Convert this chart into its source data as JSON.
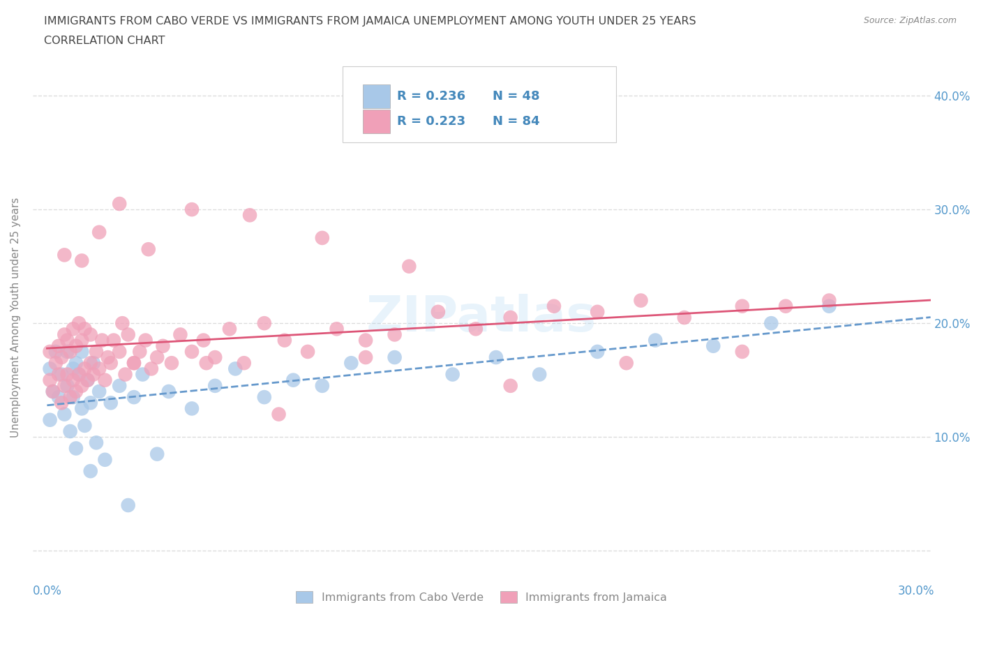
{
  "title_line1": "IMMIGRANTS FROM CABO VERDE VS IMMIGRANTS FROM JAMAICA UNEMPLOYMENT AMONG YOUTH UNDER 25 YEARS",
  "title_line2": "CORRELATION CHART",
  "source_text": "Source: ZipAtlas.com",
  "ylabel": "Unemployment Among Youth under 25 years",
  "xlim": [
    -0.005,
    0.305
  ],
  "ylim": [
    -0.025,
    0.435
  ],
  "xticks": [
    0.0,
    0.05,
    0.1,
    0.15,
    0.2,
    0.25,
    0.3
  ],
  "xticklabels_left": "0.0%",
  "xticklabels_right": "30.0%",
  "ytick_vals": [
    0.0,
    0.1,
    0.2,
    0.3,
    0.4
  ],
  "ytick_labels": [
    "",
    "10.0%",
    "20.0%",
    "30.0%",
    "40.0%"
  ],
  "legend_label1": "Immigrants from Cabo Verde",
  "legend_label2": "Immigrants from Jamaica",
  "color_blue": "#a8c8e8",
  "color_pink": "#f0a0b8",
  "line_blue_color": "#6699cc",
  "line_pink_color": "#dd5577",
  "tick_label_color": "#5599cc",
  "title_color": "#444444",
  "axis_color": "#888888",
  "grid_color": "#dddddd",
  "watermark": "ZIPatlas",
  "cabo_verde_x": [
    0.001,
    0.001,
    0.002,
    0.003,
    0.004,
    0.005,
    0.006,
    0.007,
    0.007,
    0.008,
    0.009,
    0.009,
    0.01,
    0.01,
    0.011,
    0.012,
    0.012,
    0.013,
    0.014,
    0.015,
    0.015,
    0.016,
    0.017,
    0.018,
    0.02,
    0.022,
    0.025,
    0.028,
    0.03,
    0.033,
    0.038,
    0.042,
    0.05,
    0.058,
    0.065,
    0.075,
    0.085,
    0.095,
    0.105,
    0.12,
    0.14,
    0.155,
    0.17,
    0.19,
    0.21,
    0.23,
    0.25,
    0.27
  ],
  "cabo_verde_y": [
    0.115,
    0.16,
    0.14,
    0.175,
    0.135,
    0.155,
    0.12,
    0.145,
    0.175,
    0.105,
    0.16,
    0.135,
    0.09,
    0.165,
    0.155,
    0.125,
    0.175,
    0.11,
    0.15,
    0.07,
    0.13,
    0.165,
    0.095,
    0.14,
    0.08,
    0.13,
    0.145,
    0.04,
    0.135,
    0.155,
    0.085,
    0.14,
    0.125,
    0.145,
    0.16,
    0.135,
    0.15,
    0.145,
    0.165,
    0.17,
    0.155,
    0.17,
    0.155,
    0.175,
    0.185,
    0.18,
    0.2,
    0.215
  ],
  "jamaica_x": [
    0.001,
    0.001,
    0.002,
    0.003,
    0.004,
    0.004,
    0.005,
    0.005,
    0.006,
    0.006,
    0.007,
    0.007,
    0.008,
    0.008,
    0.009,
    0.009,
    0.01,
    0.01,
    0.011,
    0.011,
    0.012,
    0.012,
    0.013,
    0.013,
    0.014,
    0.015,
    0.015,
    0.016,
    0.017,
    0.018,
    0.019,
    0.02,
    0.021,
    0.022,
    0.023,
    0.025,
    0.026,
    0.027,
    0.028,
    0.03,
    0.032,
    0.034,
    0.036,
    0.038,
    0.04,
    0.043,
    0.046,
    0.05,
    0.054,
    0.058,
    0.063,
    0.068,
    0.075,
    0.082,
    0.09,
    0.1,
    0.11,
    0.12,
    0.135,
    0.148,
    0.16,
    0.175,
    0.19,
    0.205,
    0.22,
    0.24,
    0.255,
    0.27,
    0.006,
    0.012,
    0.018,
    0.025,
    0.035,
    0.05,
    0.07,
    0.095,
    0.125,
    0.16,
    0.2,
    0.24,
    0.03,
    0.055,
    0.08,
    0.11
  ],
  "jamaica_y": [
    0.15,
    0.175,
    0.14,
    0.165,
    0.155,
    0.18,
    0.13,
    0.17,
    0.145,
    0.19,
    0.155,
    0.185,
    0.135,
    0.175,
    0.15,
    0.195,
    0.14,
    0.18,
    0.155,
    0.2,
    0.145,
    0.185,
    0.16,
    0.195,
    0.15,
    0.165,
    0.19,
    0.155,
    0.175,
    0.16,
    0.185,
    0.15,
    0.17,
    0.165,
    0.185,
    0.175,
    0.2,
    0.155,
    0.19,
    0.165,
    0.175,
    0.185,
    0.16,
    0.17,
    0.18,
    0.165,
    0.19,
    0.175,
    0.185,
    0.17,
    0.195,
    0.165,
    0.2,
    0.185,
    0.175,
    0.195,
    0.185,
    0.19,
    0.21,
    0.195,
    0.205,
    0.215,
    0.21,
    0.22,
    0.205,
    0.215,
    0.215,
    0.22,
    0.26,
    0.255,
    0.28,
    0.305,
    0.265,
    0.3,
    0.295,
    0.275,
    0.25,
    0.145,
    0.165,
    0.175,
    0.165,
    0.165,
    0.12,
    0.17
  ]
}
